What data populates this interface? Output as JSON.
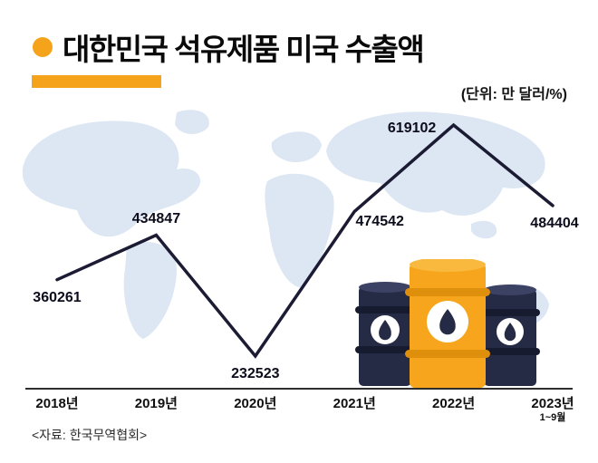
{
  "header": {
    "title": "대한민국 석유제품 미국 수출액",
    "unit_label": "(단위: 만 달러/%)"
  },
  "colors": {
    "accent_orange": "#f5a31a",
    "line_navy": "#1b1b33",
    "map_blue": "#dde7f3",
    "barrel_navy": "#262b45",
    "label_color": "#0c0c1c"
  },
  "icons": {
    "title_bullet": "orange-dot",
    "illustration": "oil-barrels-with-oil-drop-emblems",
    "background": "world-map-silhouette"
  },
  "chart_data": {
    "type": "line",
    "title": "대한민국 석유제품 미국 수출액",
    "unit": "만 달러/%",
    "categories": [
      "2018년",
      "2019년",
      "2020년",
      "2021년",
      "2022년",
      "2023년"
    ],
    "category_subnotes": [
      "",
      "",
      "",
      "",
      "",
      "1~9월"
    ],
    "values": [
      360261,
      434847,
      232523,
      474542,
      619102,
      484404
    ],
    "grid": false,
    "legend": "none",
    "y_axis": "none",
    "line_color": "#1b1b33"
  },
  "footer": {
    "source": "<자료: 한국무역협회>"
  }
}
